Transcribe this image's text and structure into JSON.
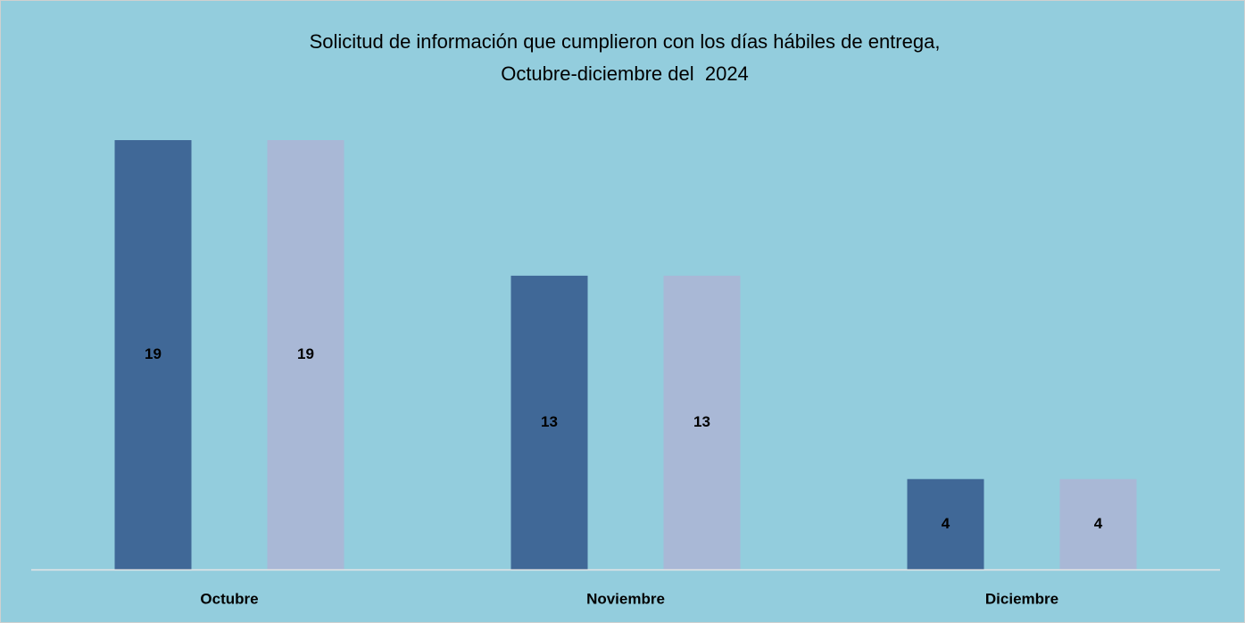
{
  "chart_data": {
    "type": "bar",
    "title": [
      "Solicitud de información que cumplieron con los días hábiles de entrega,",
      "Octubre-diciembre del  2024"
    ],
    "categories": [
      "Octubre",
      "Noviembre",
      "Diciembre"
    ],
    "series": [
      {
        "color": "#406897",
        "values": [
          19,
          13,
          4
        ]
      },
      {
        "color": "#a9b8d6",
        "values": [
          19,
          13,
          4
        ]
      }
    ]
  }
}
